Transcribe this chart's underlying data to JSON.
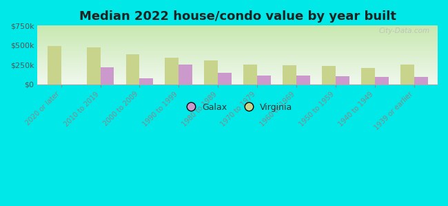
{
  "title": "Median 2022 house/condo value by year built",
  "categories": [
    "2020 or later",
    "2010 to 2019",
    "2000 to 2009",
    "1990 to 1999",
    "1980 to 1989",
    "1970 to 1979",
    "1960 to 1969",
    "1950 to 1959",
    "1940 to 1949",
    "1939 or earlier"
  ],
  "galax": [
    0,
    220000,
    75000,
    255000,
    150000,
    115000,
    115000,
    100000,
    95000,
    90000
  ],
  "virginia": [
    490000,
    470000,
    385000,
    340000,
    305000,
    250000,
    245000,
    235000,
    205000,
    250000
  ],
  "galax_color": "#cc99cc",
  "virginia_color": "#c8d48c",
  "background_outer": "#00e8e8",
  "background_inner_top": "#f0f8ee",
  "background_inner_bottom": "#c8e8b0",
  "ylim": [
    0,
    750000
  ],
  "yticks": [
    0,
    250000,
    500000,
    750000
  ],
  "bar_width": 0.35,
  "title_fontsize": 13,
  "watermark": "City-Data.com"
}
